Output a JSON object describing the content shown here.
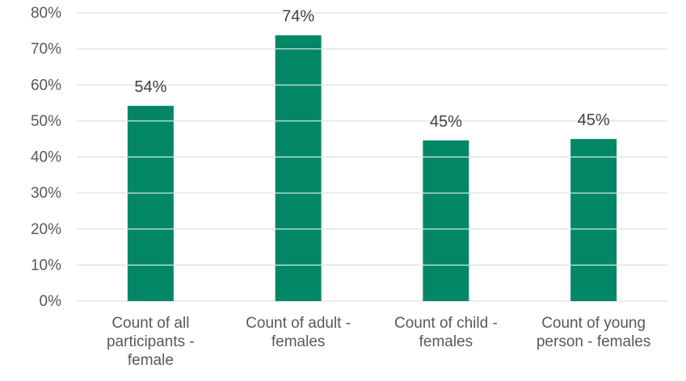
{
  "chart_data": {
    "type": "bar",
    "title": "",
    "xlabel": "",
    "ylabel": "",
    "categories": [
      [
        "Count of all",
        "participants -",
        "female"
      ],
      [
        "Count of adult -",
        "females"
      ],
      [
        "Count of child -",
        "females"
      ],
      [
        "Count of young",
        "person - females"
      ]
    ],
    "values": [
      54.2,
      73.8,
      44.6,
      45.0
    ],
    "data_labels": [
      "54%",
      "74%",
      "45%",
      "45%"
    ],
    "ylim": [
      0,
      80
    ],
    "y_ticks": [
      0,
      10,
      20,
      30,
      40,
      50,
      60,
      70,
      80
    ],
    "y_tick_labels": [
      "0%",
      "10%",
      "20%",
      "30%",
      "40%",
      "50%",
      "60%",
      "70%",
      "80%"
    ],
    "grid": true,
    "legend": "none",
    "colors": {
      "bar": "#038766",
      "grid": "#d9d9d9",
      "text": "#404040",
      "axis_text": "#595959"
    }
  }
}
